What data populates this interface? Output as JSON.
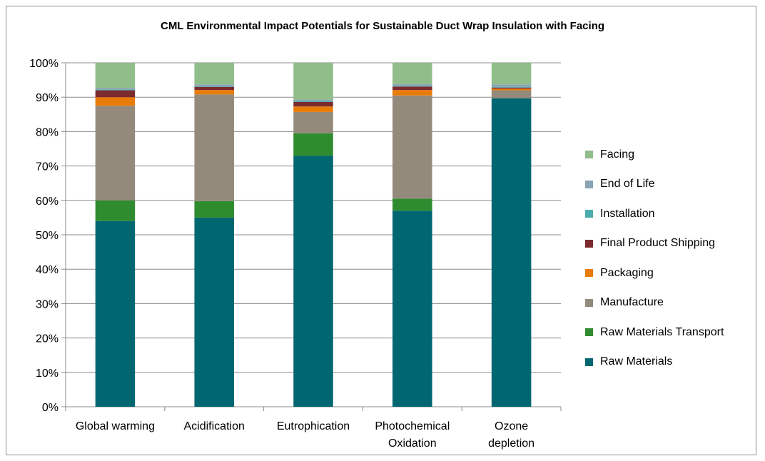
{
  "chart_data": {
    "type": "bar",
    "stacked": true,
    "title": "CML Environmental Impact Potentials for Sustainable Duct Wrap Insulation with Facing",
    "xlabel": "",
    "ylabel": "",
    "ylim": [
      0,
      100
    ],
    "y_ticks": [
      "0%",
      "10%",
      "20%",
      "30%",
      "40%",
      "50%",
      "60%",
      "70%",
      "80%",
      "90%",
      "100%"
    ],
    "grid": true,
    "legend_position": "right",
    "categories": [
      [
        "Global warming"
      ],
      [
        "Acidification"
      ],
      [
        "Eutrophication"
      ],
      [
        "Photochemical",
        "Oxidation"
      ],
      [
        "Ozone",
        "depletion"
      ]
    ],
    "series": [
      {
        "name": "Raw Materials",
        "color": "#006670",
        "values": [
          54,
          55,
          73,
          57,
          89.7
        ]
      },
      {
        "name": "Raw Materials Transport",
        "color": "#2e8b2e",
        "values": [
          6,
          4.8,
          6.5,
          3.5,
          0
        ]
      },
      {
        "name": "Manufacture",
        "color": "#948a7c",
        "values": [
          27.5,
          31,
          6.2,
          30,
          2.3
        ]
      },
      {
        "name": "Packaging",
        "color": "#e87b0a",
        "values": [
          2.5,
          1.3,
          1.6,
          1.6,
          0.5
        ]
      },
      {
        "name": "Final Product Shipping",
        "color": "#7b2a2e",
        "values": [
          2,
          0.9,
          1.3,
          1.0,
          0.3
        ]
      },
      {
        "name": "Installation",
        "color": "#4aacac",
        "values": [
          0.2,
          0.2,
          0.2,
          0.2,
          0.2
        ]
      },
      {
        "name": "End of Life",
        "color": "#8aa4b3",
        "values": [
          0.5,
          0.5,
          0.5,
          0.5,
          0.7
        ]
      },
      {
        "name": "Facing",
        "color": "#90bd8a",
        "values": [
          7.3,
          6.3,
          10.7,
          6.2,
          6.3
        ]
      }
    ]
  }
}
